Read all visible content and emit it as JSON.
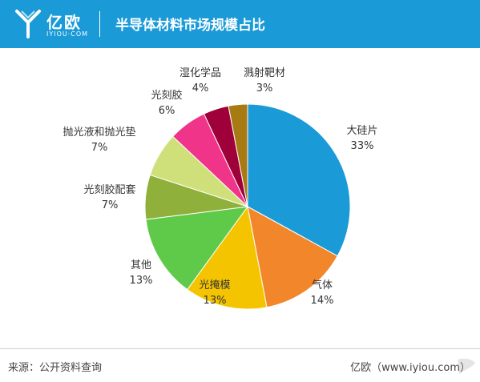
{
  "header": {
    "logo_text": "亿欧",
    "logo_sub": "IYIOU·COM",
    "title": "半导体材料市场规模占比"
  },
  "chart_data": {
    "type": "pie",
    "slices": [
      {
        "label": "大硅片",
        "value": 33,
        "value_text": "33%",
        "color": "#1a9ad7"
      },
      {
        "label": "气体",
        "value": 14,
        "value_text": "14%",
        "color": "#f2862a"
      },
      {
        "label": "光掩模",
        "value": 13,
        "value_text": "13%",
        "color": "#f5c400"
      },
      {
        "label": "其他",
        "value": 13,
        "value_text": "13%",
        "color": "#5fca4a"
      },
      {
        "label": "光刻胶配套",
        "value": 7,
        "value_text": "7%",
        "color": "#8fb03a"
      },
      {
        "label": "抛光液和抛光垫",
        "value": 7,
        "value_text": "7%",
        "color": "#cfe07a"
      },
      {
        "label": "光刻胶",
        "value": 6,
        "value_text": "6%",
        "color": "#f0348a"
      },
      {
        "label": "湿化学品",
        "value": 4,
        "value_text": "4%",
        "color": "#a0003a"
      },
      {
        "label": "溅射靶材",
        "value": 3,
        "value_text": "3%",
        "color": "#a87a14"
      }
    ],
    "start": "top",
    "direction": "clockwise"
  },
  "footer": {
    "source": "来源：公开资料查询",
    "brand": "亿欧（www.iyiou.com）"
  }
}
